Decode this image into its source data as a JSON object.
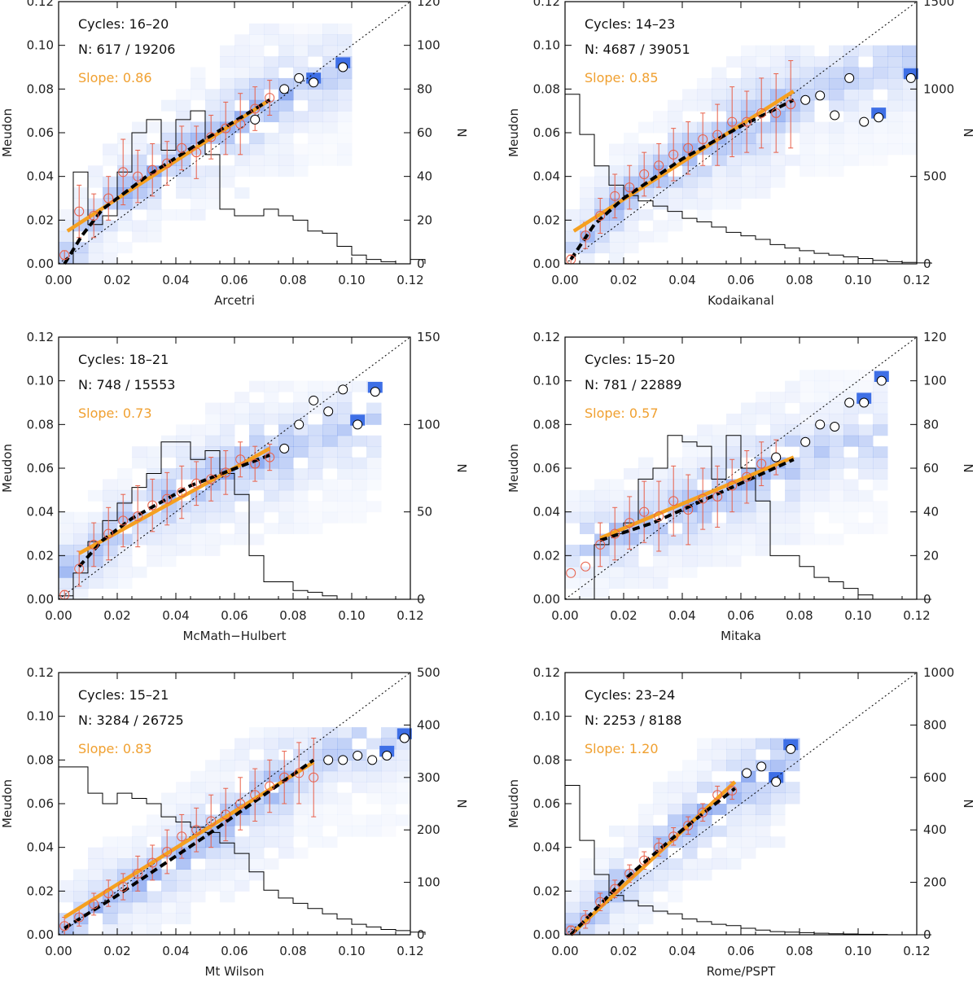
{
  "chart_data": [
    {
      "type": "scatter",
      "xlabel": "Arcetri",
      "ylabel": "Meudon",
      "y2label": "N",
      "xlim": [
        0,
        0.12
      ],
      "ylim": [
        0,
        0.12
      ],
      "y2lim": [
        0,
        120
      ],
      "xticks": [
        "0.00",
        "0.02",
        "0.04",
        "0.06",
        "0.08",
        "0.10",
        "0.12"
      ],
      "yticks": [
        "0.00",
        "0.02",
        "0.04",
        "0.06",
        "0.08",
        "0.10",
        "0.12"
      ],
      "y2ticks": [
        "0",
        "20",
        "40",
        "60",
        "80",
        "100",
        "120"
      ],
      "annotations": {
        "cycles": "Cycles: 16–20",
        "n": "N: 617 / 19206",
        "slope": "Slope: 0.86"
      },
      "fit_line": [
        [
          0.003,
          0.015
        ],
        [
          0.072,
          0.075
        ]
      ],
      "dashed_curve": [
        [
          0.002,
          0.0
        ],
        [
          0.008,
          0.013
        ],
        [
          0.015,
          0.025
        ],
        [
          0.03,
          0.04
        ],
        [
          0.05,
          0.057
        ],
        [
          0.072,
          0.075
        ]
      ],
      "binned_means": [
        [
          0.002,
          0.004
        ],
        [
          0.007,
          0.024
        ],
        [
          0.012,
          0.022
        ],
        [
          0.017,
          0.03
        ],
        [
          0.022,
          0.042
        ],
        [
          0.027,
          0.04
        ],
        [
          0.032,
          0.043
        ],
        [
          0.037,
          0.046
        ],
        [
          0.042,
          0.053
        ],
        [
          0.047,
          0.051
        ],
        [
          0.052,
          0.058
        ],
        [
          0.057,
          0.062
        ],
        [
          0.062,
          0.064
        ],
        [
          0.067,
          0.071
        ],
        [
          0.072,
          0.076
        ]
      ],
      "binned_errors": [
        0.002,
        0.012,
        0.01,
        0.01,
        0.015,
        0.012,
        0.012,
        0.01,
        0.01,
        0.012,
        0.01,
        0.012,
        0.014,
        0.01,
        0.008
      ],
      "black_circles": [
        [
          0.067,
          0.066
        ],
        [
          0.077,
          0.08
        ],
        [
          0.082,
          0.085
        ],
        [
          0.087,
          0.083
        ],
        [
          0.097,
          0.09
        ]
      ],
      "histogram": [
        0,
        42,
        18,
        22,
        42,
        60,
        66,
        52,
        66,
        70,
        50,
        25,
        22,
        22,
        25,
        22,
        20,
        15,
        14,
        8,
        4,
        2,
        1,
        0,
        2
      ],
      "density_extent": [
        0.1,
        0.11
      ]
    },
    {
      "type": "scatter",
      "xlabel": "Kodaikanal",
      "ylabel": "Meudon",
      "y2label": "N",
      "xlim": [
        0,
        0.12
      ],
      "ylim": [
        0,
        0.12
      ],
      "y2lim": [
        0,
        1500
      ],
      "xticks": [
        "0.00",
        "0.02",
        "0.04",
        "0.06",
        "0.08",
        "0.10",
        "0.12"
      ],
      "yticks": [
        "0.00",
        "0.02",
        "0.04",
        "0.06",
        "0.08",
        "0.10",
        "0.12"
      ],
      "y2ticks": [
        "0",
        "500",
        "1000",
        "1500"
      ],
      "annotations": {
        "cycles": "Cycles: 14–23",
        "n": "N: 4687 / 39051",
        "slope": "Slope: 0.85"
      },
      "fit_line": [
        [
          0.003,
          0.015
        ],
        [
          0.078,
          0.079
        ]
      ],
      "dashed_curve": [
        [
          0.002,
          0.002
        ],
        [
          0.01,
          0.018
        ],
        [
          0.02,
          0.03
        ],
        [
          0.04,
          0.048
        ],
        [
          0.06,
          0.063
        ],
        [
          0.078,
          0.075
        ]
      ],
      "binned_means": [
        [
          0.002,
          0.002
        ],
        [
          0.007,
          0.013
        ],
        [
          0.012,
          0.022
        ],
        [
          0.017,
          0.031
        ],
        [
          0.022,
          0.035
        ],
        [
          0.027,
          0.041
        ],
        [
          0.032,
          0.045
        ],
        [
          0.037,
          0.05
        ],
        [
          0.042,
          0.053
        ],
        [
          0.047,
          0.057
        ],
        [
          0.052,
          0.059
        ],
        [
          0.057,
          0.065
        ],
        [
          0.062,
          0.065
        ],
        [
          0.067,
          0.069
        ],
        [
          0.072,
          0.069
        ],
        [
          0.077,
          0.073
        ]
      ],
      "binned_errors": [
        0.002,
        0.006,
        0.008,
        0.01,
        0.01,
        0.01,
        0.01,
        0.012,
        0.012,
        0.012,
        0.014,
        0.016,
        0.014,
        0.016,
        0.018,
        0.02
      ],
      "black_circles": [
        [
          0.082,
          0.075
        ],
        [
          0.087,
          0.077
        ],
        [
          0.092,
          0.068
        ],
        [
          0.097,
          0.085
        ],
        [
          0.102,
          0.065
        ],
        [
          0.107,
          0.067
        ],
        [
          0.118,
          0.085
        ]
      ],
      "histogram": [
        970,
        740,
        560,
        450,
        390,
        360,
        330,
        300,
        260,
        240,
        210,
        180,
        160,
        140,
        110,
        90,
        75,
        60,
        50,
        40,
        30,
        20,
        12,
        8,
        5
      ],
      "density_extent": [
        0.12,
        0.1
      ]
    },
    {
      "type": "scatter",
      "xlabel": "McMath−Hulbert",
      "ylabel": "Meudon",
      "y2label": "N",
      "xlim": [
        0,
        0.12
      ],
      "ylim": [
        0,
        0.12
      ],
      "y2lim": [
        0,
        150
      ],
      "xticks": [
        "0.00",
        "0.02",
        "0.04",
        "0.06",
        "0.08",
        "0.10",
        "0.12"
      ],
      "yticks": [
        "0.00",
        "0.02",
        "0.04",
        "0.06",
        "0.08",
        "0.10",
        "0.12"
      ],
      "y2ticks": [
        "0",
        "50",
        "100",
        "150"
      ],
      "annotations": {
        "cycles": "Cycles: 18–21",
        "n": "N: 748 / 15553",
        "slope": "Slope: 0.73"
      },
      "fit_line": [
        [
          0.007,
          0.021
        ],
        [
          0.072,
          0.069
        ]
      ],
      "dashed_curve": [
        [
          0.007,
          0.015
        ],
        [
          0.015,
          0.027
        ],
        [
          0.025,
          0.037
        ],
        [
          0.045,
          0.052
        ],
        [
          0.072,
          0.066
        ]
      ],
      "binned_means": [
        [
          0.002,
          0.002
        ],
        [
          0.007,
          0.014
        ],
        [
          0.012,
          0.025
        ],
        [
          0.017,
          0.03
        ],
        [
          0.022,
          0.036
        ],
        [
          0.027,
          0.038
        ],
        [
          0.032,
          0.043
        ],
        [
          0.037,
          0.046
        ],
        [
          0.042,
          0.049
        ],
        [
          0.047,
          0.053
        ],
        [
          0.052,
          0.055
        ],
        [
          0.057,
          0.058
        ],
        [
          0.062,
          0.064
        ],
        [
          0.067,
          0.062
        ],
        [
          0.072,
          0.065
        ]
      ],
      "binned_errors": [
        0.002,
        0.008,
        0.01,
        0.012,
        0.012,
        0.014,
        0.012,
        0.012,
        0.012,
        0.01,
        0.01,
        0.01,
        0.008,
        0.008,
        0.006
      ],
      "black_circles": [
        [
          0.077,
          0.069
        ],
        [
          0.082,
          0.08
        ],
        [
          0.087,
          0.091
        ],
        [
          0.092,
          0.086
        ],
        [
          0.097,
          0.096
        ],
        [
          0.102,
          0.08
        ],
        [
          0.108,
          0.095
        ]
      ],
      "histogram": [
        2,
        15,
        33,
        45,
        55,
        64,
        72,
        90,
        90,
        80,
        85,
        72,
        60,
        25,
        10,
        10,
        5,
        4,
        2,
        0,
        0,
        0,
        0,
        0,
        0
      ],
      "density_extent": [
        0.11,
        0.1
      ]
    },
    {
      "type": "scatter",
      "xlabel": "Mitaka",
      "ylabel": "Meudon",
      "y2label": "N",
      "xlim": [
        0,
        0.12
      ],
      "ylim": [
        0,
        0.12
      ],
      "y2lim": [
        0,
        120
      ],
      "xticks": [
        "0.00",
        "0.02",
        "0.04",
        "0.06",
        "0.08",
        "0.10",
        "0.12"
      ],
      "yticks": [
        "0.00",
        "0.02",
        "0.04",
        "0.06",
        "0.08",
        "0.10",
        "0.12"
      ],
      "y2ticks": [
        "0",
        "20",
        "40",
        "60",
        "80",
        "100",
        "120"
      ],
      "annotations": {
        "cycles": "Cycles: 15–20",
        "n": "N: 781 / 22889",
        "slope": "Slope: 0.57"
      },
      "fit_line": [
        [
          0.012,
          0.028
        ],
        [
          0.078,
          0.065
        ]
      ],
      "dashed_curve": [
        [
          0.012,
          0.027
        ],
        [
          0.03,
          0.035
        ],
        [
          0.05,
          0.047
        ],
        [
          0.078,
          0.064
        ]
      ],
      "binned_means": [
        [
          0.002,
          0.012
        ],
        [
          0.007,
          0.015
        ],
        [
          0.012,
          0.025
        ],
        [
          0.017,
          0.03
        ],
        [
          0.022,
          0.035
        ],
        [
          0.027,
          0.04
        ],
        [
          0.032,
          0.038
        ],
        [
          0.037,
          0.045
        ],
        [
          0.042,
          0.041
        ],
        [
          0.047,
          0.046
        ],
        [
          0.052,
          0.047
        ],
        [
          0.057,
          0.052
        ],
        [
          0.062,
          0.056
        ],
        [
          0.067,
          0.062
        ],
        [
          0.072,
          0.065
        ]
      ],
      "binned_errors": [
        0.0,
        0.0,
        0.01,
        0.012,
        0.012,
        0.014,
        0.016,
        0.016,
        0.016,
        0.014,
        0.014,
        0.012,
        0.012,
        0.01,
        0.008
      ],
      "black_circles": [
        [
          0.072,
          0.065
        ],
        [
          0.082,
          0.072
        ],
        [
          0.087,
          0.08
        ],
        [
          0.092,
          0.079
        ],
        [
          0.097,
          0.09
        ],
        [
          0.102,
          0.09
        ],
        [
          0.108,
          0.1
        ]
      ],
      "histogram": [
        0,
        0,
        25,
        30,
        35,
        55,
        60,
        75,
        72,
        70,
        55,
        75,
        60,
        45,
        20,
        20,
        15,
        10,
        8,
        5,
        2,
        0,
        0,
        0,
        0
      ],
      "density_extent": [
        0.11,
        0.105
      ]
    },
    {
      "type": "scatter",
      "xlabel": "Mt Wilson",
      "ylabel": "Meudon",
      "y2label": "N",
      "xlim": [
        0,
        0.12
      ],
      "ylim": [
        0,
        0.12
      ],
      "y2lim": [
        0,
        500
      ],
      "xticks": [
        "0.00",
        "0.02",
        "0.04",
        "0.06",
        "0.08",
        "0.10",
        "0.12"
      ],
      "yticks": [
        "0.00",
        "0.02",
        "0.04",
        "0.06",
        "0.08",
        "0.10",
        "0.12"
      ],
      "y2ticks": [
        "0",
        "100",
        "200",
        "300",
        "400",
        "500"
      ],
      "annotations": {
        "cycles": "Cycles: 15–21",
        "n": "N: 3284 / 26725",
        "slope": "Slope: 0.83"
      },
      "fit_line": [
        [
          0.002,
          0.008
        ],
        [
          0.087,
          0.079
        ]
      ],
      "dashed_curve": [
        [
          0.002,
          0.003
        ],
        [
          0.02,
          0.018
        ],
        [
          0.05,
          0.045
        ],
        [
          0.087,
          0.08
        ]
      ],
      "binned_means": [
        [
          0.002,
          0.004
        ],
        [
          0.007,
          0.008
        ],
        [
          0.012,
          0.014
        ],
        [
          0.017,
          0.019
        ],
        [
          0.022,
          0.022
        ],
        [
          0.027,
          0.028
        ],
        [
          0.032,
          0.033
        ],
        [
          0.037,
          0.038
        ],
        [
          0.042,
          0.045
        ],
        [
          0.047,
          0.048
        ],
        [
          0.052,
          0.052
        ],
        [
          0.057,
          0.055
        ],
        [
          0.062,
          0.06
        ],
        [
          0.067,
          0.064
        ],
        [
          0.072,
          0.068
        ],
        [
          0.077,
          0.072
        ],
        [
          0.082,
          0.074
        ],
        [
          0.087,
          0.072
        ]
      ],
      "binned_errors": [
        0.004,
        0.004,
        0.005,
        0.006,
        0.006,
        0.008,
        0.008,
        0.01,
        0.01,
        0.01,
        0.012,
        0.012,
        0.012,
        0.012,
        0.012,
        0.012,
        0.014,
        0.018
      ],
      "black_circles": [
        [
          0.092,
          0.08
        ],
        [
          0.097,
          0.08
        ],
        [
          0.102,
          0.082
        ],
        [
          0.107,
          0.08
        ],
        [
          0.112,
          0.082
        ],
        [
          0.118,
          0.09
        ]
      ],
      "histogram": [
        320,
        320,
        270,
        250,
        270,
        260,
        250,
        225,
        215,
        205,
        195,
        175,
        155,
        120,
        85,
        70,
        60,
        50,
        40,
        30,
        20,
        15,
        10,
        8,
        5
      ],
      "density_extent": [
        0.12,
        0.095
      ]
    },
    {
      "type": "scatter",
      "xlabel": "Rome/PSPT",
      "ylabel": "Meudon",
      "y2label": "N",
      "xlim": [
        0,
        0.12
      ],
      "ylim": [
        0,
        0.12
      ],
      "y2lim": [
        0,
        1000
      ],
      "xticks": [
        "0.00",
        "0.02",
        "0.04",
        "0.06",
        "0.08",
        "0.10",
        "0.12"
      ],
      "yticks": [
        "0.00",
        "0.02",
        "0.04",
        "0.06",
        "0.08",
        "0.10",
        "0.12"
      ],
      "y2ticks": [
        "0",
        "200",
        "400",
        "600",
        "800",
        "1000"
      ],
      "annotations": {
        "cycles": "Cycles: 23–24",
        "n": "N: 2253 / 8188",
        "slope": "Slope: 1.20"
      },
      "fit_line": [
        [
          0.002,
          0.0
        ],
        [
          0.058,
          0.07
        ]
      ],
      "dashed_curve": [
        [
          0.002,
          0.0
        ],
        [
          0.02,
          0.025
        ],
        [
          0.04,
          0.048
        ],
        [
          0.058,
          0.067
        ]
      ],
      "binned_means": [
        [
          0.002,
          0.002
        ],
        [
          0.007,
          0.007
        ],
        [
          0.012,
          0.015
        ],
        [
          0.017,
          0.021
        ],
        [
          0.022,
          0.028
        ],
        [
          0.027,
          0.034
        ],
        [
          0.032,
          0.04
        ],
        [
          0.037,
          0.045
        ],
        [
          0.042,
          0.05
        ],
        [
          0.047,
          0.056
        ],
        [
          0.052,
          0.064
        ],
        [
          0.057,
          0.066
        ]
      ],
      "binned_errors": [
        0.002,
        0.004,
        0.004,
        0.004,
        0.004,
        0.004,
        0.004,
        0.004,
        0.004,
        0.004,
        0.004,
        0.004
      ],
      "black_circles": [
        [
          0.062,
          0.074
        ],
        [
          0.067,
          0.077
        ],
        [
          0.072,
          0.07
        ],
        [
          0.077,
          0.085
        ]
      ],
      "histogram": [
        570,
        360,
        230,
        150,
        130,
        110,
        90,
        80,
        60,
        50,
        40,
        35,
        25,
        18,
        12,
        10,
        8,
        6,
        4,
        3,
        2,
        1,
        0,
        0,
        0
      ],
      "density_extent": [
        0.08,
        0.09
      ]
    }
  ]
}
